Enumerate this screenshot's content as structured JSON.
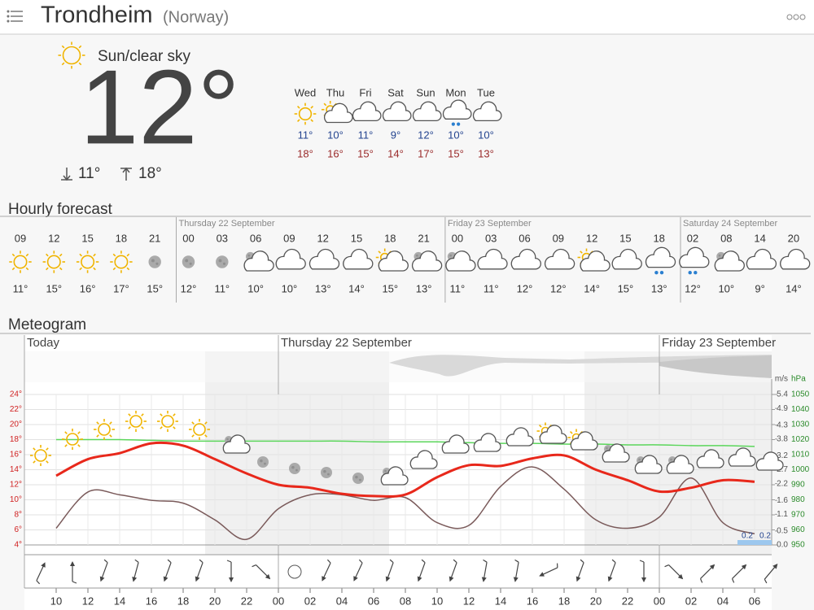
{
  "header": {
    "title": "Trondheim",
    "subtitle": "(Norway)"
  },
  "current": {
    "condition": "Sun/clear sky",
    "temperature": "12°",
    "low": "11°",
    "high": "18°"
  },
  "daily": [
    {
      "day": "Wed",
      "low": "11°",
      "high": "18°"
    },
    {
      "day": "Thu",
      "low": "10°",
      "high": "16°"
    },
    {
      "day": "Fri",
      "low": "11°",
      "high": "15°"
    },
    {
      "day": "Sat",
      "low": "9°",
      "high": "14°"
    },
    {
      "day": "Sun",
      "low": "12°",
      "high": "17°"
    },
    {
      "day": "Mon",
      "low": "10°",
      "high": "15°"
    },
    {
      "day": "Tue",
      "low": "10°",
      "high": "13°"
    }
  ],
  "hourly": {
    "title": "Hourly forecast",
    "days": [
      {
        "hours": [
          {
            "time": "09",
            "temp": "11°"
          },
          {
            "time": "12",
            "temp": "15°"
          },
          {
            "time": "15",
            "temp": "16°"
          },
          {
            "time": "18",
            "temp": "17°"
          },
          {
            "time": "21",
            "temp": "15°"
          }
        ]
      },
      {
        "label": "Thursday 22 September",
        "hours": [
          {
            "time": "00",
            "temp": "12°"
          },
          {
            "time": "03",
            "temp": "11°"
          },
          {
            "time": "06",
            "temp": "10°"
          },
          {
            "time": "09",
            "temp": "10°"
          },
          {
            "time": "12",
            "temp": "13°"
          },
          {
            "time": "15",
            "temp": "14°"
          },
          {
            "time": "18",
            "temp": "15°"
          },
          {
            "time": "21",
            "temp": "13°"
          }
        ]
      },
      {
        "label": "Friday 23 September",
        "hours": [
          {
            "time": "00",
            "temp": "11°"
          },
          {
            "time": "03",
            "temp": "11°"
          },
          {
            "time": "06",
            "temp": "12°"
          },
          {
            "time": "09",
            "temp": "12°"
          },
          {
            "time": "12",
            "temp": "14°"
          },
          {
            "time": "15",
            "temp": "15°"
          },
          {
            "time": "18",
            "temp": "13°"
          }
        ]
      },
      {
        "label": "Saturday 24 September",
        "hours": [
          {
            "time": "02",
            "temp": "12°"
          },
          {
            "time": "08",
            "temp": "10°"
          },
          {
            "time": "14",
            "temp": "9°"
          },
          {
            "time": "20",
            "temp": "14°"
          }
        ]
      }
    ]
  },
  "meteogram": {
    "title": "Meteogram",
    "day_labels": [
      "Today",
      "Thursday 22 September",
      "Friday 23 September"
    ],
    "x": [
      "10",
      "12",
      "14",
      "16",
      "18",
      "20",
      "22",
      "00",
      "02",
      "04",
      "06",
      "08",
      "10",
      "12",
      "14",
      "16",
      "18",
      "20",
      "22",
      "00",
      "02",
      "04",
      "06"
    ],
    "ylim": [
      4,
      24
    ],
    "yticks": [
      {
        "value": 24,
        "label": "24°"
      },
      {
        "value": 22,
        "label": "22°"
      },
      {
        "value": 20,
        "label": "20°"
      },
      {
        "value": 18,
        "label": "18°"
      },
      {
        "value": 16,
        "label": "16°"
      },
      {
        "value": 14,
        "label": "14°"
      },
      {
        "value": 12,
        "label": "12°"
      },
      {
        "value": 10,
        "label": "10°"
      },
      {
        "value": 8,
        "label": "8°"
      },
      {
        "value": 6,
        "label": "6°"
      },
      {
        "value": 4,
        "label": "4°"
      }
    ],
    "wind_unit": "m/s",
    "wind_lim": [
      0,
      5.4
    ],
    "wind_ticks": [
      5.4,
      4.9,
      4.3,
      3.8,
      3.2,
      2.7,
      2.2,
      1.6,
      1.1,
      0.5,
      {
        "value": 0,
        "label": "0.0"
      }
    ],
    "pressure_unit": "hPa",
    "y2lim": [
      950,
      1050
    ],
    "y2ticks": [
      1050,
      1040,
      1030,
      1020,
      1010,
      1000,
      990,
      980,
      970,
      960,
      950
    ],
    "precipitation_labels": [
      "0.2",
      "0.2"
    ],
    "temperature": [
      13.2,
      15.4,
      16.2,
      17.5,
      17.2,
      15.4,
      13.5,
      12,
      11.6,
      10.8,
      10.5,
      10.7,
      13,
      14.6,
      14.5,
      15.5,
      15.9,
      14,
      12.6,
      11.1,
      11.6,
      12.6,
      12.4
    ],
    "wind": [
      0.6,
      1.9,
      1.8,
      1.6,
      1.5,
      0.9,
      0.2,
      1.3,
      1.8,
      1.8,
      1.6,
      1.7,
      0.8,
      0.7,
      2.1,
      2.8,
      2.0,
      0.9,
      0.6,
      1.0,
      2.4,
      0.8,
      0.4
    ],
    "pressure": [
      1020,
      1020,
      1020,
      1019.5,
      1019,
      1019,
      1019,
      1019,
      1019,
      1019,
      1018.5,
      1018.5,
      1018.5,
      1018,
      1017.5,
      1017.5,
      1017,
      1017,
      1016.5,
      1016.5,
      1016,
      1016,
      1015.5
    ]
  }
}
